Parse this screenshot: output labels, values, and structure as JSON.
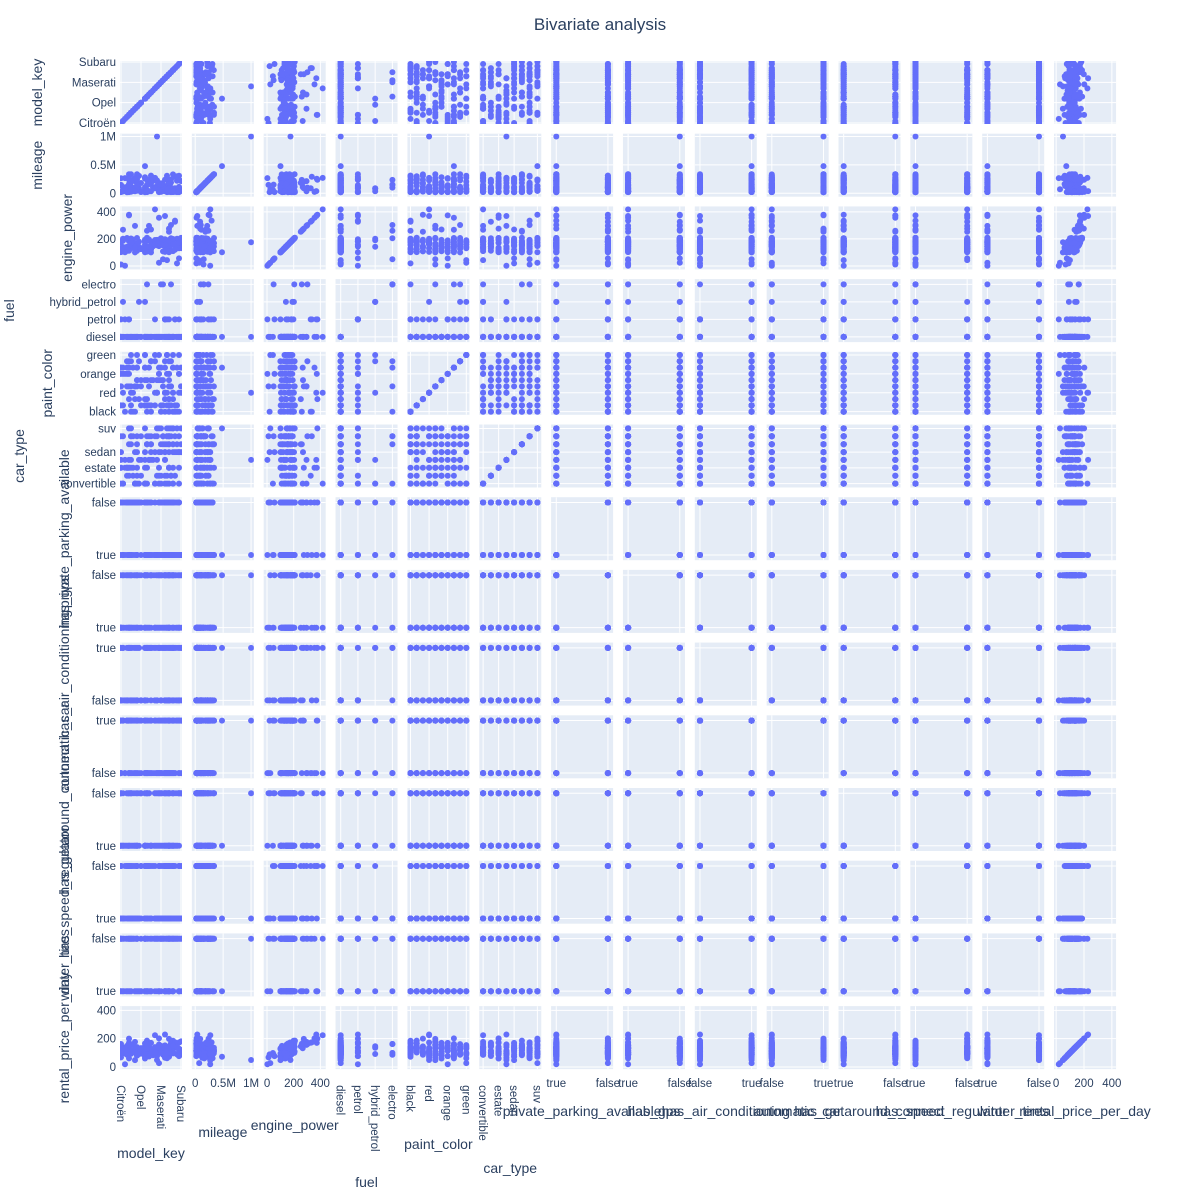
{
  "chart_data": {
    "type": "scatter",
    "title": "Bivariate analysis",
    "marker_color": "#636efa",
    "plot_bg": "#e5ecf6",
    "grid_color": "#ffffff",
    "variables": [
      {
        "name": "model_key",
        "kind": "cat",
        "categories": [
          "Citroën",
          "Opel",
          "Maserati",
          "Subaru"
        ],
        "range": [
          -0.5,
          30.5
        ],
        "tickpos": [
          0,
          10,
          20,
          30
        ]
      },
      {
        "name": "mileage",
        "kind": "num",
        "range": [
          -60000,
          1050000
        ],
        "ticks": [
          0,
          500000,
          1000000
        ],
        "ticklabels": [
          "0",
          "0.5M",
          "1M"
        ]
      },
      {
        "name": "engine_power",
        "kind": "num",
        "range": [
          -25,
          440
        ],
        "ticks": [
          0,
          200,
          400
        ],
        "ticklabels": [
          "0",
          "200",
          "400"
        ]
      },
      {
        "name": "fuel",
        "kind": "cat",
        "categories": [
          "diesel",
          "petrol",
          "hybrid_petrol",
          "electro"
        ],
        "range": [
          -0.3,
          3.3
        ]
      },
      {
        "name": "paint_color",
        "kind": "cat",
        "categories": [
          "black",
          "red",
          "orange",
          "green"
        ],
        "all_levels": 10,
        "range": [
          -0.5,
          9.5
        ],
        "tickpos": [
          0,
          3,
          6,
          9
        ]
      },
      {
        "name": "car_type",
        "kind": "cat",
        "categories": [
          "convertible",
          "estate",
          "sedan",
          "suv"
        ],
        "all_levels": 8,
        "range": [
          -0.5,
          7.5
        ],
        "tickpos": [
          0,
          2,
          4,
          7
        ],
        "ticklabels_x": [
          "convertible",
          "estate",
          "sedan",
          "suv"
        ]
      },
      {
        "name": "private_parking_available",
        "kind": "cat",
        "categories": [
          "true",
          "false"
        ],
        "range": [
          -0.1,
          1.1
        ]
      },
      {
        "name": "has_gps",
        "kind": "cat",
        "categories": [
          "true",
          "false"
        ],
        "range": [
          -0.1,
          1.1
        ]
      },
      {
        "name": "has_air_conditioning",
        "kind": "cat",
        "categories": [
          "false",
          "true"
        ],
        "range": [
          -0.1,
          1.1
        ]
      },
      {
        "name": "automatic_car",
        "kind": "cat",
        "categories": [
          "false",
          "true"
        ],
        "range": [
          -0.1,
          1.1
        ]
      },
      {
        "name": "has_getaround_connect",
        "kind": "cat",
        "categories": [
          "true",
          "false"
        ],
        "range": [
          -0.1,
          1.1
        ]
      },
      {
        "name": "has_speed_regulator",
        "kind": "cat",
        "categories": [
          "true",
          "false"
        ],
        "range": [
          -0.1,
          1.1
        ]
      },
      {
        "name": "winter_tires",
        "kind": "cat",
        "categories": [
          "true",
          "false"
        ],
        "range": [
          -0.1,
          1.1
        ]
      },
      {
        "name": "rental_price_per_day",
        "kind": "num",
        "range": [
          -15,
          430
        ],
        "ticks": [
          0,
          200,
          400
        ],
        "ticklabels": [
          "0",
          "200",
          "400"
        ]
      }
    ]
  }
}
